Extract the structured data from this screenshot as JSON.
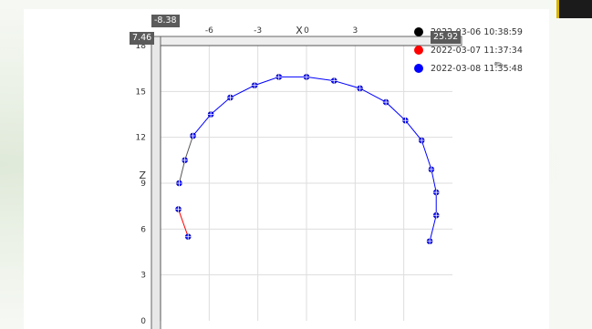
{
  "readouts": {
    "x_cursor": "-8.38",
    "y_cursor": "7.46",
    "z_cursor": "25.92"
  },
  "chart_data": {
    "type": "scatter",
    "title": "",
    "xlabel": "X",
    "ylabel": "Z",
    "x_ticks": [
      "-6",
      "-3",
      "0",
      "3"
    ],
    "y_ticks": [
      "0",
      "3",
      "6",
      "9",
      "12",
      "15",
      "18"
    ],
    "xlim": [
      -9,
      9
    ],
    "ylim": [
      0,
      18
    ],
    "grid": true,
    "legend_position": "top-right",
    "series": [
      {
        "name": "2022-03-06 10:38:59",
        "color": "#000000",
        "points": [
          [
            -7.85,
            9.0
          ],
          [
            -7.5,
            10.5
          ],
          [
            -7.0,
            12.1
          ]
        ]
      },
      {
        "name": "2022-03-07 11:37:34",
        "color": "#ff0000",
        "points": [
          [
            -7.3,
            5.5
          ],
          [
            -7.9,
            7.3
          ]
        ]
      },
      {
        "name": "2022-03-08 11:35:48",
        "color": "#0000ff",
        "points": [
          [
            -7.0,
            12.1
          ],
          [
            -5.9,
            13.5
          ],
          [
            -4.7,
            14.6
          ],
          [
            -3.2,
            15.4
          ],
          [
            -1.7,
            15.95
          ],
          [
            0.0,
            15.95
          ],
          [
            1.7,
            15.7
          ],
          [
            3.3,
            15.2
          ],
          [
            4.9,
            14.3
          ],
          [
            6.1,
            13.1
          ],
          [
            7.1,
            11.8
          ],
          [
            7.7,
            9.9
          ],
          [
            8.0,
            8.4
          ],
          [
            8.0,
            6.9
          ],
          [
            7.6,
            5.2
          ]
        ]
      }
    ]
  }
}
